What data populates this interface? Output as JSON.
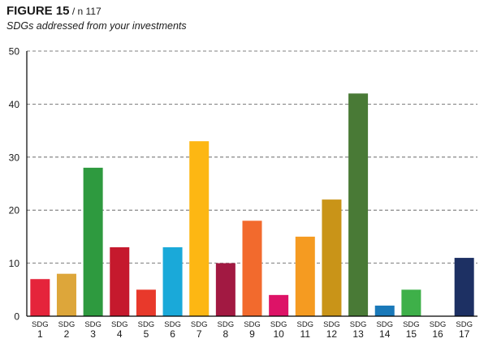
{
  "figure": {
    "label": "FIGURE 15",
    "count": " / n 117",
    "subtitle": "SDGs addressed from your investments"
  },
  "chart_data": {
    "type": "bar",
    "title": "SDGs addressed from your investments",
    "xlabel": "",
    "ylabel": "",
    "ylim": [
      0,
      50
    ],
    "yticks": [
      0,
      10,
      20,
      30,
      40,
      50
    ],
    "grid": true,
    "legend": "none",
    "category_prefix": "SDG",
    "categories": [
      "1",
      "2",
      "3",
      "4",
      "5",
      "6",
      "7",
      "8",
      "9",
      "10",
      "11",
      "12",
      "13",
      "14",
      "15",
      "16",
      "17"
    ],
    "values": [
      7,
      8,
      28,
      13,
      5,
      13,
      33,
      10,
      18,
      4,
      15,
      22,
      42,
      2,
      5,
      0,
      11
    ],
    "colors": [
      "#e5243b",
      "#dda63a",
      "#2e9a3f",
      "#c5192d",
      "#e8392b",
      "#1aa9d9",
      "#fdb713",
      "#a21942",
      "#f26a2d",
      "#dd1367",
      "#f59b21",
      "#c99418",
      "#497a36",
      "#1a79b9",
      "#3eb049",
      "#0a5a8f",
      "#1d3063"
    ]
  }
}
